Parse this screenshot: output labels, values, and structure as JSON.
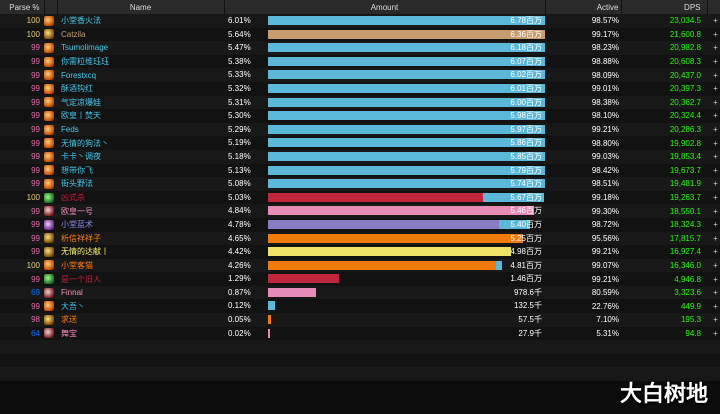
{
  "headers": {
    "parse": "Parse %",
    "name": "Name",
    "amount": "Amount",
    "active": "Active",
    "dps": "DPS"
  },
  "colors": {
    "parse_orange": "#ff8000",
    "parse_pink": "#e268a8",
    "parse_purple": "#a335ee",
    "parse_blue": "#0070ff",
    "dps_green": "#1eff00"
  },
  "rows": [
    {
      "parse": "100",
      "parse_tier": "gold",
      "icon": "mage-icon",
      "name": "小堂香火法",
      "name_color": "#3fc7eb",
      "pct": "6.01%",
      "fill": 1.0,
      "bar_color": "#5bb8d8",
      "amount": "6.78百万",
      "active": "98.57%",
      "dps": "23,034.5",
      "plus": "+"
    },
    {
      "parse": "100",
      "parse_tier": "gold",
      "icon": "warrior-icon",
      "name": "Catzila",
      "name_color": "#c69b6d",
      "pct": "5.64%",
      "fill": 0.938,
      "bar_color": "#c69b6d",
      "amount": "6.36百万",
      "active": "99.17%",
      "dps": "21,600.8",
      "plus": "+"
    },
    {
      "parse": "99",
      "parse_tier": "pink",
      "icon": "mage-icon",
      "name": "Tsumolimage",
      "name_color": "#3fc7eb",
      "pct": "5.47%",
      "fill": 0.91,
      "bar_color": "#5bb8d8",
      "amount": "6.18百万",
      "active": "98.23%",
      "dps": "20,982.8",
      "plus": "+"
    },
    {
      "parse": "99",
      "parse_tier": "pink",
      "icon": "mage-icon",
      "name": "你需粒维珏珏",
      "name_color": "#3fc7eb",
      "pct": "5.38%",
      "fill": 0.895,
      "bar_color": "#5bb8d8",
      "amount": "6.07百万",
      "active": "98.88%",
      "dps": "20,608.3",
      "plus": "+"
    },
    {
      "parse": "99",
      "parse_tier": "pink",
      "icon": "mage-icon",
      "name": "Forestxcq",
      "name_color": "#3fc7eb",
      "pct": "5.33%",
      "fill": 0.887,
      "bar_color": "#5bb8d8",
      "amount": "6.02百万",
      "active": "98.09%",
      "dps": "20,437.0",
      "plus": "+"
    },
    {
      "parse": "99",
      "parse_tier": "pink",
      "icon": "mage-icon",
      "name": "酥酒钩红",
      "name_color": "#3fc7eb",
      "pct": "5.32%",
      "fill": 0.885,
      "bar_color": "#5bb8d8",
      "amount": "6.01百万",
      "active": "99.01%",
      "dps": "20,397.3",
      "plus": "+"
    },
    {
      "parse": "99",
      "parse_tier": "pink",
      "icon": "mage-icon",
      "name": "气定凉爆娃",
      "name_color": "#3fc7eb",
      "pct": "5.31%",
      "fill": 0.884,
      "bar_color": "#5bb8d8",
      "amount": "6.00百万",
      "active": "98.38%",
      "dps": "20,362.7",
      "plus": "+"
    },
    {
      "parse": "99",
      "parse_tier": "pink",
      "icon": "mage-icon",
      "name": "欧皇丨焚天",
      "name_color": "#3fc7eb",
      "pct": "5.30%",
      "fill": 0.882,
      "bar_color": "#5bb8d8",
      "amount": "5.98百万",
      "active": "98.10%",
      "dps": "20,324.4",
      "plus": "+"
    },
    {
      "parse": "99",
      "parse_tier": "pink",
      "icon": "mage-icon",
      "name": "Feds",
      "name_color": "#3fc7eb",
      "pct": "5.29%",
      "fill": 0.88,
      "bar_color": "#5bb8d8",
      "amount": "5.97百万",
      "active": "99.21%",
      "dps": "20,286.3",
      "plus": "+"
    },
    {
      "parse": "99",
      "parse_tier": "pink",
      "icon": "mage-icon",
      "name": "无情的狗法丶",
      "name_color": "#3fc7eb",
      "pct": "5.19%",
      "fill": 0.864,
      "bar_color": "#5bb8d8",
      "amount": "5.86百万",
      "active": "98.80%",
      "dps": "19,902.8",
      "plus": "+"
    },
    {
      "parse": "99",
      "parse_tier": "pink",
      "icon": "mage-icon",
      "name": "卡卡丶调夜",
      "name_color": "#3fc7eb",
      "pct": "5.18%",
      "fill": 0.862,
      "bar_color": "#5bb8d8",
      "amount": "5.85百万",
      "active": "99.03%",
      "dps": "19,853.4",
      "plus": "+"
    },
    {
      "parse": "99",
      "parse_tier": "pink",
      "icon": "mage-icon",
      "name": "想带你飞",
      "name_color": "#3fc7eb",
      "pct": "5.13%",
      "fill": 0.854,
      "bar_color": "#5bb8d8",
      "amount": "5.79百万",
      "active": "98.42%",
      "dps": "19,673.7",
      "plus": "+"
    },
    {
      "parse": "99",
      "parse_tier": "pink",
      "icon": "mage-icon",
      "name": "街头野法",
      "name_color": "#3fc7eb",
      "pct": "5.08%",
      "fill": 0.845,
      "bar_color": "#5bb8d8",
      "amount": "5.74百万",
      "active": "98.51%",
      "dps": "19,481.9",
      "plus": "+"
    },
    {
      "parse": "100",
      "parse_tier": "gold",
      "icon": "dk-icon",
      "name": "凶式杀",
      "name_color": "#c41e3a",
      "pct": "5.03%",
      "fill": 0.65,
      "fill2": 0.836,
      "bar_color": "#c0273e",
      "bar_color2": "#5bb8d8",
      "amount": "5.67百万",
      "active": "99.18%",
      "dps": "19,263.7",
      "plus": "+"
    },
    {
      "parse": "99",
      "parse_tier": "pink",
      "icon": "rogue-icon",
      "name": "欧皇一号",
      "name_color": "#f48cba",
      "pct": "4.84%",
      "fill": 0.805,
      "bar_color": "#e58bb6",
      "amount": "5.46百万",
      "active": "99.30%",
      "dps": "18,550.1",
      "plus": "+"
    },
    {
      "parse": "99",
      "parse_tier": "pink",
      "icon": "priest-icon",
      "name": "小堂蓝术",
      "name_color": "#8788ee",
      "pct": "4.78%",
      "fill": 0.7,
      "fill2": 0.795,
      "bar_color": "#8a7cc4",
      "bar_color2": "#5bb8d8",
      "amount": "5.40百万",
      "active": "98.72%",
      "dps": "18,324.3",
      "plus": "+"
    },
    {
      "parse": "99",
      "parse_tier": "pink",
      "icon": "warrior-icon",
      "name": "析信祥祥子",
      "name_color": "#ff7c0a",
      "pct": "4.65%",
      "fill": 0.774,
      "bar_color": "#f07a0c",
      "amount": "5.25百万",
      "active": "95.56%",
      "dps": "17,815.7",
      "plus": "+"
    },
    {
      "parse": "99",
      "parse_tier": "pink",
      "icon": "warrior-icon",
      "name": "无情的达献丨",
      "name_color": "#fff468",
      "pct": "4.42%",
      "fill": 0.735,
      "bar_color": "#eee265",
      "amount": "4.98百万",
      "active": "99.21%",
      "dps": "16,927.4",
      "plus": "+"
    },
    {
      "parse": "100",
      "parse_tier": "gold",
      "icon": "mage-icon",
      "name": "小堂客猫",
      "name_color": "#ff7c0a",
      "pct": "4.26%",
      "fill": 0.69,
      "fill2": 0.709,
      "bar_color": "#f07a0c",
      "bar_color2": "#5bb8d8",
      "amount": "4.81百万",
      "active": "99.07%",
      "dps": "16,346.0",
      "plus": "+"
    },
    {
      "parse": "99",
      "parse_tier": "pink",
      "icon": "dk-icon",
      "name": "是一个旧人",
      "name_color": "#c41e3a",
      "pct": "1.29%",
      "fill": 0.215,
      "bar_color": "#c0273e",
      "amount": "1.46百万",
      "active": "99.21%",
      "dps": "4,946.8",
      "plus": "+"
    },
    {
      "parse": "69",
      "parse_tier": "blue",
      "icon": "rogue-icon",
      "name": "Finnal",
      "name_color": "#f48cba",
      "pct": "0.87%",
      "fill": 0.145,
      "bar_color": "#e58bb6",
      "amount": "978.6千",
      "active": "80.59%",
      "dps": "3,323.6",
      "plus": "+"
    },
    {
      "parse": "99",
      "parse_tier": "pink",
      "icon": "mage-icon",
      "name": "大吾丶",
      "name_color": "#3fc7eb",
      "pct": "0.12%",
      "fill": 0.02,
      "bar_color": "#5bb8d8",
      "amount": "132.5千",
      "active": "22.76%",
      "dps": "449.9",
      "plus": "+"
    },
    {
      "parse": "98",
      "parse_tier": "pink",
      "icon": "warrior-icon",
      "name": "求送",
      "name_color": "#ff7c0a",
      "pct": "0.05%",
      "fill": 0.008,
      "bar_color": "#f07a0c",
      "amount": "57.5千",
      "active": "7.10%",
      "dps": "195.3",
      "plus": "+"
    },
    {
      "parse": "64",
      "parse_tier": "blue",
      "icon": "rogue-icon",
      "name": "舞宝",
      "name_color": "#f48cba",
      "pct": "0.02%",
      "fill": 0.004,
      "bar_color": "#e58bb6",
      "amount": "27.9千",
      "active": "5.31%",
      "dps": "94.8",
      "plus": "+"
    }
  ],
  "watermark": "大白树地"
}
